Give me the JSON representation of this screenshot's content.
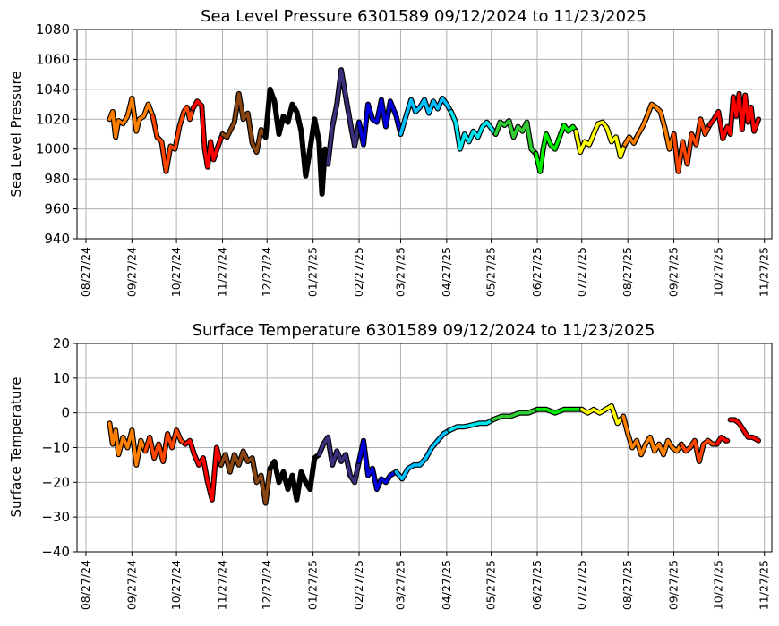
{
  "chart_data": [
    {
      "type": "line",
      "title": "Sea Level Pressure 6301589  09/12/2024 to 11/23/2025",
      "xlabel": "",
      "ylabel": "Sea Level Pressure",
      "ylim": [
        940,
        1080
      ],
      "yticks": [
        940,
        960,
        980,
        1000,
        1020,
        1040,
        1060,
        1080
      ],
      "xlim": [
        "2024-08-21",
        "2025-12-02"
      ],
      "xticks": [
        "2024-08-27",
        "2024-09-27",
        "2024-10-27",
        "2024-11-27",
        "2024-12-27",
        "2025-01-27",
        "2025-02-27",
        "2025-03-27",
        "2025-04-27",
        "2025-05-27",
        "2025-06-27",
        "2025-07-27",
        "2025-08-27",
        "2025-09-27",
        "2025-10-27",
        "2025-11-27"
      ],
      "xtick_labels": [
        "08/27/24",
        "09/27/24",
        "10/27/24",
        "11/27/24",
        "12/27/24",
        "01/27/25",
        "02/27/25",
        "03/27/25",
        "04/27/25",
        "05/27/25",
        "06/27/25",
        "07/27/25",
        "08/27/25",
        "09/27/25",
        "10/27/25",
        "11/27/25"
      ],
      "grid": true,
      "legend": "none",
      "series": [
        {
          "color": "#ff8000",
          "x": [
            "2024-09-12",
            "2024-09-14",
            "2024-09-16",
            "2024-09-18",
            "2024-09-21",
            "2024-09-24",
            "2024-09-27",
            "2024-09-30",
            "2024-10-02",
            "2024-10-05",
            "2024-10-08",
            "2024-10-11"
          ],
          "y": [
            1020,
            1025,
            1008,
            1019,
            1017,
            1022,
            1034,
            1012,
            1020,
            1022,
            1030,
            1022
          ]
        },
        {
          "color": "#ff4500",
          "x": [
            "2024-10-11",
            "2024-10-14",
            "2024-10-17",
            "2024-10-20",
            "2024-10-23",
            "2024-10-26",
            "2024-10-29",
            "2024-11-01",
            "2024-11-03",
            "2024-11-05",
            "2024-11-07"
          ],
          "y": [
            1022,
            1008,
            1005,
            985,
            1002,
            1000,
            1015,
            1025,
            1028,
            1020,
            1027
          ]
        },
        {
          "color": "#ff0000",
          "x": [
            "2024-11-07",
            "2024-11-10",
            "2024-11-13",
            "2024-11-15",
            "2024-11-17",
            "2024-11-19",
            "2024-11-21",
            "2024-11-24",
            "2024-11-27"
          ],
          "y": [
            1027,
            1032,
            1029,
            1000,
            988,
            1005,
            993,
            1002,
            1010
          ]
        },
        {
          "color": "#8b4513",
          "x": [
            "2024-11-27",
            "2024-11-30",
            "2024-12-02",
            "2024-12-05",
            "2024-12-08",
            "2024-12-11",
            "2024-12-14",
            "2024-12-17",
            "2024-12-20",
            "2024-12-23",
            "2024-12-26"
          ],
          "y": [
            1010,
            1008,
            1012,
            1018,
            1037,
            1020,
            1024,
            1004,
            998,
            1013,
            1008
          ]
        },
        {
          "color": "#000000",
          "x": [
            "2024-12-26",
            "2024-12-29",
            "2025-01-01",
            "2025-01-04",
            "2025-01-07",
            "2025-01-10",
            "2025-01-13",
            "2025-01-16",
            "2025-01-19",
            "2025-01-22",
            "2025-01-25",
            "2025-01-28",
            "2025-01-31",
            "2025-02-02",
            "2025-02-04",
            "2025-02-06"
          ],
          "y": [
            1008,
            1040,
            1032,
            1010,
            1022,
            1018,
            1030,
            1025,
            1012,
            982,
            1000,
            1020,
            1005,
            970,
            1000,
            990
          ]
        },
        {
          "color": "#3a2f7a",
          "x": [
            "2025-02-06",
            "2025-02-09",
            "2025-02-12",
            "2025-02-15",
            "2025-02-18",
            "2025-02-21",
            "2025-02-24",
            "2025-02-27"
          ],
          "y": [
            990,
            1015,
            1030,
            1053,
            1035,
            1018,
            1002,
            1018
          ]
        },
        {
          "color": "#0000dd",
          "x": [
            "2025-02-27",
            "2025-03-02",
            "2025-03-05",
            "2025-03-08",
            "2025-03-11",
            "2025-03-14",
            "2025-03-17",
            "2025-03-20",
            "2025-03-24",
            "2025-03-27"
          ],
          "y": [
            1018,
            1003,
            1030,
            1020,
            1018,
            1033,
            1015,
            1032,
            1022,
            1010
          ]
        },
        {
          "color": "#00bfff",
          "x": [
            "2025-03-27",
            "2025-03-30",
            "2025-04-03",
            "2025-04-06",
            "2025-04-09",
            "2025-04-12",
            "2025-04-15",
            "2025-04-18",
            "2025-04-21",
            "2025-04-24",
            "2025-04-27",
            "2025-04-30"
          ],
          "y": [
            1010,
            1020,
            1033,
            1025,
            1028,
            1033,
            1024,
            1032,
            1027,
            1034,
            1030,
            1025
          ]
        },
        {
          "color": "#00e5ee",
          "x": [
            "2025-04-30",
            "2025-05-03",
            "2025-05-06",
            "2025-05-09",
            "2025-05-12",
            "2025-05-15",
            "2025-05-18",
            "2025-05-21",
            "2025-05-24",
            "2025-05-27",
            "2025-05-30"
          ],
          "y": [
            1025,
            1018,
            1000,
            1010,
            1005,
            1012,
            1008,
            1015,
            1018,
            1014,
            1010
          ]
        },
        {
          "color": "#32cd32",
          "x": [
            "2025-05-30",
            "2025-06-02",
            "2025-06-05",
            "2025-06-08",
            "2025-06-11",
            "2025-06-14",
            "2025-06-17",
            "2025-06-20",
            "2025-06-23",
            "2025-06-26"
          ],
          "y": [
            1010,
            1018,
            1016,
            1019,
            1008,
            1015,
            1012,
            1018,
            1000,
            997
          ]
        },
        {
          "color": "#00ee00",
          "x": [
            "2025-06-26",
            "2025-06-29",
            "2025-07-01",
            "2025-07-03",
            "2025-07-06",
            "2025-07-09",
            "2025-07-12",
            "2025-07-15",
            "2025-07-18",
            "2025-07-21",
            "2025-07-23"
          ],
          "y": [
            997,
            985,
            1000,
            1010,
            1003,
            1000,
            1008,
            1016,
            1012,
            1015,
            1012
          ]
        },
        {
          "color": "#ffff00",
          "x": [
            "2025-07-23",
            "2025-07-26",
            "2025-07-29",
            "2025-08-01",
            "2025-08-04",
            "2025-08-07",
            "2025-08-10",
            "2025-08-13",
            "2025-08-16",
            "2025-08-19",
            "2025-08-22",
            "2025-08-25"
          ],
          "y": [
            1012,
            998,
            1005,
            1003,
            1010,
            1017,
            1018,
            1014,
            1005,
            1008,
            995,
            1003
          ]
        },
        {
          "color": "#ff8000",
          "x": [
            "2025-08-25",
            "2025-08-28",
            "2025-08-31",
            "2025-09-03",
            "2025-09-06",
            "2025-09-09",
            "2025-09-12",
            "2025-09-15",
            "2025-09-18",
            "2025-09-21",
            "2025-09-24",
            "2025-09-27"
          ],
          "y": [
            1003,
            1008,
            1004,
            1010,
            1015,
            1022,
            1030,
            1028,
            1025,
            1014,
            1000,
            1010
          ]
        },
        {
          "color": "#ff4500",
          "x": [
            "2025-09-27",
            "2025-09-30",
            "2025-10-03",
            "2025-10-06",
            "2025-10-09",
            "2025-10-12",
            "2025-10-15",
            "2025-10-18",
            "2025-10-21"
          ],
          "y": [
            1010,
            985,
            1005,
            990,
            1010,
            1003,
            1020,
            1010,
            1016
          ]
        },
        {
          "color": "#ff0000",
          "x": [
            "2025-10-21",
            "2025-10-24",
            "2025-10-27",
            "2025-10-30",
            "2025-11-02",
            "2025-11-04",
            "2025-11-06",
            "2025-11-08",
            "2025-11-10",
            "2025-11-12",
            "2025-11-14",
            "2025-11-16",
            "2025-11-18",
            "2025-11-20",
            "2025-11-23"
          ],
          "y": [
            1016,
            1020,
            1025,
            1007,
            1015,
            1010,
            1035,
            1022,
            1037,
            1013,
            1036,
            1018,
            1028,
            1012,
            1020
          ]
        }
      ]
    },
    {
      "type": "line",
      "title": "Surface Temperature 6301589  09/12/2024 to 11/23/2025",
      "xlabel": "",
      "ylabel": "Surface Temperature",
      "ylim": [
        -40,
        20
      ],
      "yticks": [
        -40,
        -30,
        -20,
        -10,
        0,
        10,
        20
      ],
      "xlim": [
        "2024-08-21",
        "2025-12-02"
      ],
      "xticks": [
        "2024-08-27",
        "2024-09-27",
        "2024-10-27",
        "2024-11-27",
        "2024-12-27",
        "2025-01-27",
        "2025-02-27",
        "2025-03-27",
        "2025-04-27",
        "2025-05-27",
        "2025-06-27",
        "2025-07-27",
        "2025-08-27",
        "2025-09-27",
        "2025-10-27",
        "2025-11-27"
      ],
      "xtick_labels": [
        "08/27/24",
        "09/27/24",
        "10/27/24",
        "11/27/24",
        "12/27/24",
        "01/27/25",
        "02/27/25",
        "03/27/25",
        "04/27/25",
        "05/27/25",
        "06/27/25",
        "07/27/25",
        "08/27/25",
        "09/27/25",
        "10/27/25",
        "11/27/25"
      ],
      "grid": true,
      "legend": "none",
      "series": [
        {
          "color": "#ff8000",
          "x": [
            "2024-09-12",
            "2024-09-14",
            "2024-09-16",
            "2024-09-18",
            "2024-09-21",
            "2024-09-24",
            "2024-09-27",
            "2024-09-30",
            "2024-10-03",
            "2024-10-06"
          ],
          "y": [
            -3,
            -9,
            -5,
            -12,
            -7,
            -10,
            -5,
            -15,
            -8,
            -11
          ]
        },
        {
          "color": "#ff4500",
          "x": [
            "2024-10-06",
            "2024-10-09",
            "2024-10-12",
            "2024-10-15",
            "2024-10-18",
            "2024-10-21",
            "2024-10-24",
            "2024-10-27",
            "2024-10-30",
            "2024-11-02"
          ],
          "y": [
            -11,
            -7,
            -13,
            -9,
            -14,
            -6,
            -10,
            -5,
            -8,
            -9
          ]
        },
        {
          "color": "#ff0000",
          "x": [
            "2024-11-02",
            "2024-11-05",
            "2024-11-08",
            "2024-11-11",
            "2024-11-14",
            "2024-11-17",
            "2024-11-20",
            "2024-11-23",
            "2024-11-26"
          ],
          "y": [
            -9,
            -8,
            -12,
            -15,
            -13,
            -20,
            -25,
            -10,
            -15
          ]
        },
        {
          "color": "#8b4513",
          "x": [
            "2024-11-26",
            "2024-11-29",
            "2024-12-02",
            "2024-12-05",
            "2024-12-08",
            "2024-12-11",
            "2024-12-14",
            "2024-12-17",
            "2024-12-20",
            "2024-12-23",
            "2024-12-26",
            "2024-12-29"
          ],
          "y": [
            -15,
            -12,
            -17,
            -12,
            -15,
            -11,
            -14,
            -13,
            -20,
            -18,
            -26,
            -16
          ]
        },
        {
          "color": "#000000",
          "x": [
            "2024-12-29",
            "2025-01-01",
            "2025-01-04",
            "2025-01-07",
            "2025-01-10",
            "2025-01-13",
            "2025-01-16",
            "2025-01-19",
            "2025-01-22",
            "2025-01-25",
            "2025-01-28",
            "2025-01-31"
          ],
          "y": [
            -16,
            -14,
            -20,
            -17,
            -22,
            -18,
            -25,
            -17,
            -20,
            -22,
            -13,
            -12
          ]
        },
        {
          "color": "#3a2f7a",
          "x": [
            "2025-01-31",
            "2025-02-03",
            "2025-02-06",
            "2025-02-09",
            "2025-02-12",
            "2025-02-15",
            "2025-02-18",
            "2025-02-21",
            "2025-02-24",
            "2025-02-27"
          ],
          "y": [
            -12,
            -9,
            -7,
            -15,
            -11,
            -14,
            -12,
            -18,
            -20,
            -14
          ]
        },
        {
          "color": "#0000dd",
          "x": [
            "2025-02-27",
            "2025-03-02",
            "2025-03-05",
            "2025-03-08",
            "2025-03-11",
            "2025-03-14",
            "2025-03-17",
            "2025-03-20",
            "2025-03-24"
          ],
          "y": [
            -14,
            -8,
            -18,
            -16,
            -22,
            -19,
            -20,
            -18,
            -17
          ]
        },
        {
          "color": "#00bfff",
          "x": [
            "2025-03-24",
            "2025-03-28",
            "2025-04-01",
            "2025-04-05",
            "2025-04-09",
            "2025-04-13",
            "2025-04-17",
            "2025-04-21",
            "2025-04-25",
            "2025-04-29"
          ],
          "y": [
            -17,
            -19,
            -16,
            -15,
            -15,
            -13,
            -10,
            -8,
            -6,
            -5
          ]
        },
        {
          "color": "#00e5ee",
          "x": [
            "2025-04-29",
            "2025-05-04",
            "2025-05-09",
            "2025-05-14",
            "2025-05-19",
            "2025-05-24",
            "2025-05-28"
          ],
          "y": [
            -5,
            -4,
            -4,
            -3.5,
            -3,
            -3,
            -2
          ]
        },
        {
          "color": "#32cd32",
          "x": [
            "2025-05-28",
            "2025-06-03",
            "2025-06-09",
            "2025-06-15",
            "2025-06-21",
            "2025-06-27"
          ],
          "y": [
            -2,
            -1,
            -1,
            0,
            0,
            1
          ]
        },
        {
          "color": "#00ee00",
          "x": [
            "2025-06-27",
            "2025-07-03",
            "2025-07-09",
            "2025-07-15",
            "2025-07-21",
            "2025-07-27"
          ],
          "y": [
            1,
            1,
            0,
            1,
            1,
            1
          ]
        },
        {
          "color": "#ffff00",
          "x": [
            "2025-07-27",
            "2025-07-31",
            "2025-08-04",
            "2025-08-08",
            "2025-08-12",
            "2025-08-16",
            "2025-08-20",
            "2025-08-24"
          ],
          "y": [
            1,
            0,
            1,
            0,
            1,
            2,
            -3,
            -1
          ]
        },
        {
          "color": "#ff8000",
          "x": [
            "2025-08-24",
            "2025-08-27",
            "2025-08-30",
            "2025-09-02",
            "2025-09-05",
            "2025-09-08",
            "2025-09-11",
            "2025-09-14",
            "2025-09-17",
            "2025-09-20",
            "2025-09-23",
            "2025-09-26",
            "2025-09-29",
            "2025-10-02"
          ],
          "y": [
            -1,
            -6,
            -10,
            -8,
            -12,
            -9,
            -7,
            -11,
            -9,
            -12,
            -8,
            -10,
            -11,
            -9
          ]
        },
        {
          "color": "#ff4500",
          "x": [
            "2025-10-02",
            "2025-10-05",
            "2025-10-08",
            "2025-10-11",
            "2025-10-14",
            "2025-10-17",
            "2025-10-20",
            "2025-10-23",
            "2025-10-26"
          ],
          "y": [
            -9,
            -11,
            -10,
            -8,
            -14,
            -9,
            -8,
            -9,
            -9
          ]
        },
        {
          "color": "#ff0000",
          "x": [
            "2025-10-26",
            "2025-10-29",
            "2025-11-01",
            "2025-11-02"
          ],
          "y": [
            -9,
            -7,
            -8,
            -8
          ]
        },
        {
          "color": "#ff0000",
          "x": [
            "2025-11-04",
            "2025-11-07",
            "2025-11-10",
            "2025-11-13",
            "2025-11-16",
            "2025-11-19",
            "2025-11-23"
          ],
          "y": [
            -2,
            -2,
            -3,
            -5,
            -7,
            -7,
            -8
          ]
        }
      ]
    }
  ]
}
